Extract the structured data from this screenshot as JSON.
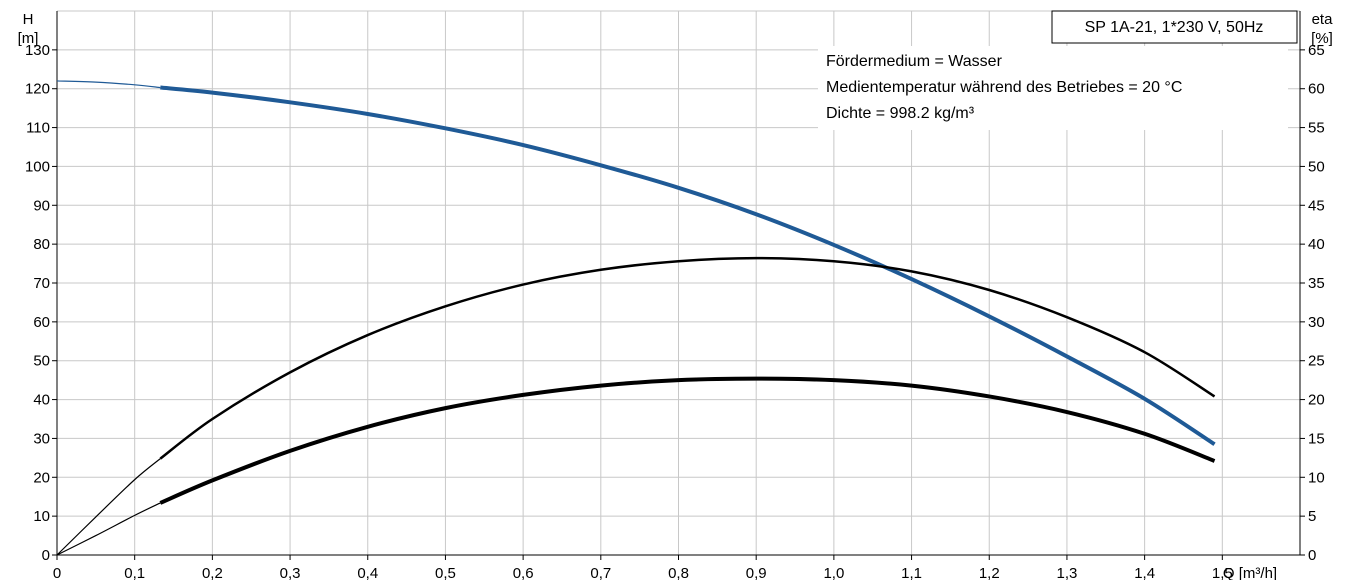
{
  "chart_data": {
    "type": "line",
    "title": "SP 1A-21, 1*230 V, 50Hz",
    "info_lines": [
      "Fördermedium = Wasser",
      "Medientemperatur während des Betriebes = 20 °C",
      "Dichte = 998.2 kg/m³"
    ],
    "xlabel": "Q [m³/h]",
    "ylabel_left": [
      "H",
      "[m]"
    ],
    "ylabel_right": [
      "eta",
      "[%]"
    ],
    "xlim": [
      0,
      1.6
    ],
    "ylim_left": [
      0,
      140
    ],
    "ylim_right": [
      0,
      70
    ],
    "x_ticks": [
      {
        "v": 0,
        "l": "0"
      },
      {
        "v": 0.1,
        "l": "0,1"
      },
      {
        "v": 0.2,
        "l": "0,2"
      },
      {
        "v": 0.3,
        "l": "0,3"
      },
      {
        "v": 0.4,
        "l": "0,4"
      },
      {
        "v": 0.5,
        "l": "0,5"
      },
      {
        "v": 0.6,
        "l": "0,6"
      },
      {
        "v": 0.7,
        "l": "0,7"
      },
      {
        "v": 0.8,
        "l": "0,8"
      },
      {
        "v": 0.9,
        "l": "0,9"
      },
      {
        "v": 1.0,
        "l": "1,0"
      },
      {
        "v": 1.1,
        "l": "1,1"
      },
      {
        "v": 1.2,
        "l": "1,2"
      },
      {
        "v": 1.3,
        "l": "1,3"
      },
      {
        "v": 1.4,
        "l": "1,4"
      },
      {
        "v": 1.5,
        "l": "1,5"
      }
    ],
    "y_ticks_left": [
      0,
      10,
      20,
      30,
      40,
      50,
      60,
      70,
      80,
      90,
      100,
      110,
      120,
      130
    ],
    "y_ticks_right": [
      0,
      5,
      10,
      15,
      20,
      25,
      30,
      35,
      40,
      45,
      50,
      55,
      60,
      65
    ],
    "grid": true,
    "series": [
      {
        "color": "#1f5a96",
        "axis": "left",
        "thin_segment": {
          "x": [
            0,
            0.05,
            0.1,
            0.133
          ],
          "y": [
            122,
            121.7,
            121,
            120.3
          ]
        },
        "x": [
          0.133,
          0.2,
          0.3,
          0.4,
          0.5,
          0.6,
          0.7,
          0.8,
          0.9,
          1.0,
          1.1,
          1.2,
          1.3,
          1.4,
          1.49
        ],
        "y": [
          120.3,
          119,
          116.5,
          113.5,
          109.8,
          105.5,
          100.3,
          94.5,
          87.7,
          79.8,
          71,
          61.4,
          51.1,
          40.2,
          28.5
        ]
      },
      {
        "color": "#000000",
        "axis": "right",
        "thin_segment": {
          "x": [
            0,
            0.05,
            0.1,
            0.133
          ],
          "y": [
            0,
            4.9,
            9.7,
            12.4
          ]
        },
        "x": [
          0.133,
          0.2,
          0.3,
          0.4,
          0.5,
          0.6,
          0.7,
          0.8,
          0.9,
          1.0,
          1.1,
          1.2,
          1.3,
          1.4,
          1.49
        ],
        "y": [
          12.4,
          17.5,
          23.5,
          28.3,
          32,
          34.8,
          36.7,
          37.8,
          38.2,
          37.8,
          36.5,
          34.1,
          30.6,
          26.1,
          20.4
        ]
      },
      {
        "color": "#000000",
        "axis": "right",
        "thin_segment": {
          "x": [
            0,
            0.05,
            0.1,
            0.133
          ],
          "y": [
            0,
            2.5,
            5.1,
            6.7
          ]
        },
        "x": [
          0.133,
          0.2,
          0.3,
          0.4,
          0.5,
          0.6,
          0.7,
          0.8,
          0.9,
          1.0,
          1.1,
          1.2,
          1.3,
          1.4,
          1.49
        ],
        "y": [
          6.7,
          9.6,
          13.4,
          16.5,
          18.9,
          20.6,
          21.8,
          22.5,
          22.7,
          22.5,
          21.8,
          20.4,
          18.4,
          15.6,
          12.1
        ]
      }
    ]
  }
}
